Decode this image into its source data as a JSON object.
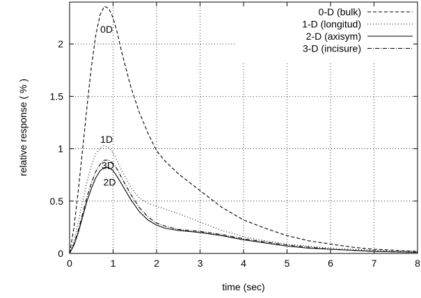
{
  "chart_data": {
    "type": "line",
    "title": "",
    "xlabel": "time (sec)",
    "ylabel": "relative response ( % )",
    "xlim": [
      0,
      8
    ],
    "ylim": [
      0,
      2.4
    ],
    "x_ticks": [
      "0",
      "1",
      "2",
      "3",
      "4",
      "5",
      "6",
      "7",
      "8"
    ],
    "y_ticks": [
      "0",
      "0.5",
      "1",
      "1.5",
      "2"
    ],
    "grid": true,
    "legend_position": "top-right",
    "series": [
      {
        "name": "0-D (bulk)",
        "dash": "5 3",
        "points": [
          [
            0,
            0
          ],
          [
            0.1,
            0.25
          ],
          [
            0.2,
            0.6
          ],
          [
            0.3,
            1.0
          ],
          [
            0.4,
            1.4
          ],
          [
            0.5,
            1.78
          ],
          [
            0.6,
            2.08
          ],
          [
            0.7,
            2.28
          ],
          [
            0.8,
            2.36
          ],
          [
            0.9,
            2.34
          ],
          [
            1.0,
            2.25
          ],
          [
            1.1,
            2.1
          ],
          [
            1.2,
            1.92
          ],
          [
            1.4,
            1.6
          ],
          [
            1.6,
            1.35
          ],
          [
            1.8,
            1.15
          ],
          [
            2.0,
            0.98
          ],
          [
            2.2,
            0.88
          ],
          [
            2.5,
            0.76
          ],
          [
            3.0,
            0.6
          ],
          [
            3.5,
            0.44
          ],
          [
            4.0,
            0.32
          ],
          [
            4.5,
            0.24
          ],
          [
            5.0,
            0.17
          ],
          [
            5.5,
            0.12
          ],
          [
            6.0,
            0.09
          ],
          [
            6.5,
            0.06
          ],
          [
            7.0,
            0.04
          ],
          [
            7.5,
            0.03
          ],
          [
            8.0,
            0.02
          ]
        ]
      },
      {
        "name": "1-D (longitud)",
        "dash": "1 3",
        "points": [
          [
            0,
            0
          ],
          [
            0.1,
            0.12
          ],
          [
            0.2,
            0.3
          ],
          [
            0.3,
            0.5
          ],
          [
            0.4,
            0.68
          ],
          [
            0.5,
            0.84
          ],
          [
            0.6,
            0.95
          ],
          [
            0.7,
            1.01
          ],
          [
            0.8,
            1.03
          ],
          [
            0.9,
            1.01
          ],
          [
            1.0,
            0.96
          ],
          [
            1.1,
            0.88
          ],
          [
            1.2,
            0.79
          ],
          [
            1.4,
            0.64
          ],
          [
            1.6,
            0.53
          ],
          [
            1.8,
            0.48
          ],
          [
            2.0,
            0.45
          ],
          [
            2.5,
            0.38
          ],
          [
            3.0,
            0.3
          ],
          [
            3.5,
            0.22
          ],
          [
            4.0,
            0.16
          ],
          [
            4.5,
            0.12
          ],
          [
            5.0,
            0.09
          ],
          [
            6.0,
            0.05
          ],
          [
            7.0,
            0.03
          ],
          [
            8.0,
            0.02
          ]
        ]
      },
      {
        "name": "2-D (axisym)",
        "dash": "",
        "points": [
          [
            0,
            0
          ],
          [
            0.1,
            0.08
          ],
          [
            0.2,
            0.2
          ],
          [
            0.3,
            0.35
          ],
          [
            0.4,
            0.5
          ],
          [
            0.5,
            0.62
          ],
          [
            0.6,
            0.72
          ],
          [
            0.7,
            0.79
          ],
          [
            0.8,
            0.82
          ],
          [
            0.9,
            0.82
          ],
          [
            1.0,
            0.79
          ],
          [
            1.1,
            0.73
          ],
          [
            1.2,
            0.66
          ],
          [
            1.4,
            0.52
          ],
          [
            1.6,
            0.4
          ],
          [
            1.8,
            0.32
          ],
          [
            2.0,
            0.27
          ],
          [
            2.2,
            0.24
          ],
          [
            2.5,
            0.22
          ],
          [
            3.0,
            0.2
          ],
          [
            3.5,
            0.17
          ],
          [
            4.0,
            0.13
          ],
          [
            4.5,
            0.1
          ],
          [
            5.0,
            0.07
          ],
          [
            5.5,
            0.05
          ],
          [
            6.0,
            0.04
          ],
          [
            7.0,
            0.02
          ],
          [
            8.0,
            0.01
          ]
        ]
      },
      {
        "name": "3-D (incisure)",
        "dash": "6 2 1 2",
        "points": [
          [
            0,
            0
          ],
          [
            0.1,
            0.09
          ],
          [
            0.2,
            0.22
          ],
          [
            0.3,
            0.38
          ],
          [
            0.4,
            0.54
          ],
          [
            0.5,
            0.67
          ],
          [
            0.6,
            0.78
          ],
          [
            0.7,
            0.85
          ],
          [
            0.8,
            0.89
          ],
          [
            0.9,
            0.89
          ],
          [
            1.0,
            0.86
          ],
          [
            1.1,
            0.8
          ],
          [
            1.2,
            0.72
          ],
          [
            1.4,
            0.57
          ],
          [
            1.6,
            0.44
          ],
          [
            1.8,
            0.35
          ],
          [
            2.0,
            0.29
          ],
          [
            2.2,
            0.26
          ],
          [
            2.5,
            0.23
          ],
          [
            3.0,
            0.21
          ],
          [
            3.5,
            0.18
          ],
          [
            4.0,
            0.14
          ],
          [
            4.5,
            0.11
          ],
          [
            5.0,
            0.08
          ],
          [
            5.5,
            0.06
          ],
          [
            6.0,
            0.04
          ],
          [
            7.0,
            0.02
          ],
          [
            8.0,
            0.01
          ]
        ]
      }
    ],
    "annotations": [
      {
        "text": "0D",
        "x": 0.85,
        "y": 2.14
      },
      {
        "text": "1D",
        "x": 0.85,
        "y": 1.09
      },
      {
        "text": "3D",
        "x": 0.88,
        "y": 0.84
      },
      {
        "text": "2D",
        "x": 0.92,
        "y": 0.68
      }
    ]
  }
}
